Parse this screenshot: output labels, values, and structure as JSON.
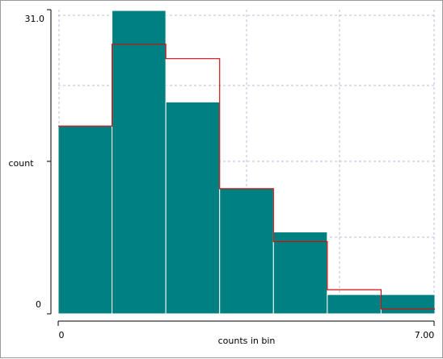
{
  "chart_data": {
    "type": "bar",
    "title": "",
    "xlabel": "counts in bin",
    "ylabel": "count",
    "xlim": [
      0,
      7
    ],
    "ylim": [
      0,
      31
    ],
    "x_tick_labels": [
      "0",
      "7.00"
    ],
    "y_tick_labels": [
      "31.0",
      "0"
    ],
    "grid": true,
    "bin_edges": [
      0,
      1,
      2,
      3,
      4,
      5,
      6,
      7
    ],
    "series": [
      {
        "kind": "histogram",
        "values": [
          19.5,
          31.5,
          22.0,
          13.0,
          8.5,
          2.0,
          2.0
        ]
      },
      {
        "kind": "step",
        "values": [
          19.5,
          28.0,
          26.5,
          13.0,
          7.5,
          2.5,
          0.5
        ]
      }
    ],
    "colors": {
      "bars": "#008080",
      "bar_edge": "#ffffff",
      "step": "#cc1111",
      "grid": "#b8bcd8",
      "axis": "#000000"
    }
  }
}
